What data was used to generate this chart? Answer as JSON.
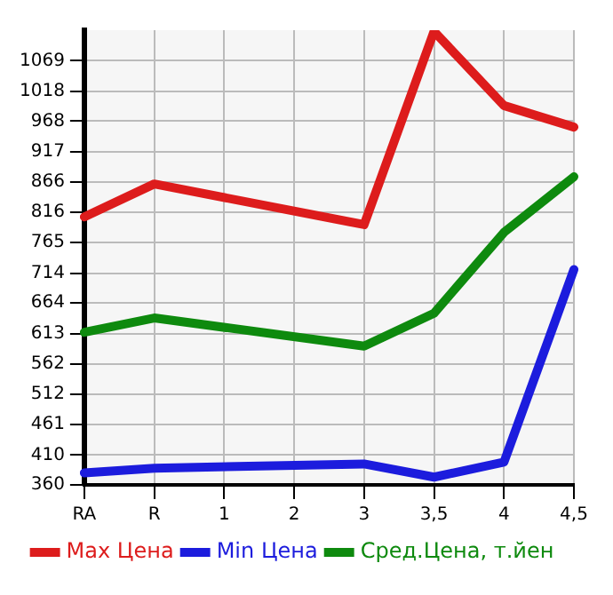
{
  "chart_data": {
    "type": "line",
    "categories": [
      "RA",
      "R",
      "1",
      "2",
      "3",
      "3,5",
      "4",
      "4,5"
    ],
    "series": [
      {
        "name": "Max Цена",
        "color": "#dd1c1c",
        "values": [
          808,
          863,
          null,
          null,
          795,
          1118,
          994,
          958
        ]
      },
      {
        "name": "Min Цена",
        "color": "#1c1cdd",
        "values": [
          380,
          388,
          null,
          null,
          395,
          373,
          398,
          720
        ]
      },
      {
        "name": "Сред.Цена, т.йен",
        "color": "#0e8a0e",
        "values": [
          615,
          639,
          null,
          null,
          592,
          647,
          782,
          875
        ]
      }
    ],
    "ylim": [
      360,
      1120
    ],
    "yticks": [
      360,
      410,
      461,
      512,
      562,
      613,
      664,
      714,
      765,
      816,
      866,
      917,
      968,
      1018,
      1069
    ],
    "grid": true,
    "legend": "bottom",
    "marker": "none",
    "line_style": "solid"
  }
}
